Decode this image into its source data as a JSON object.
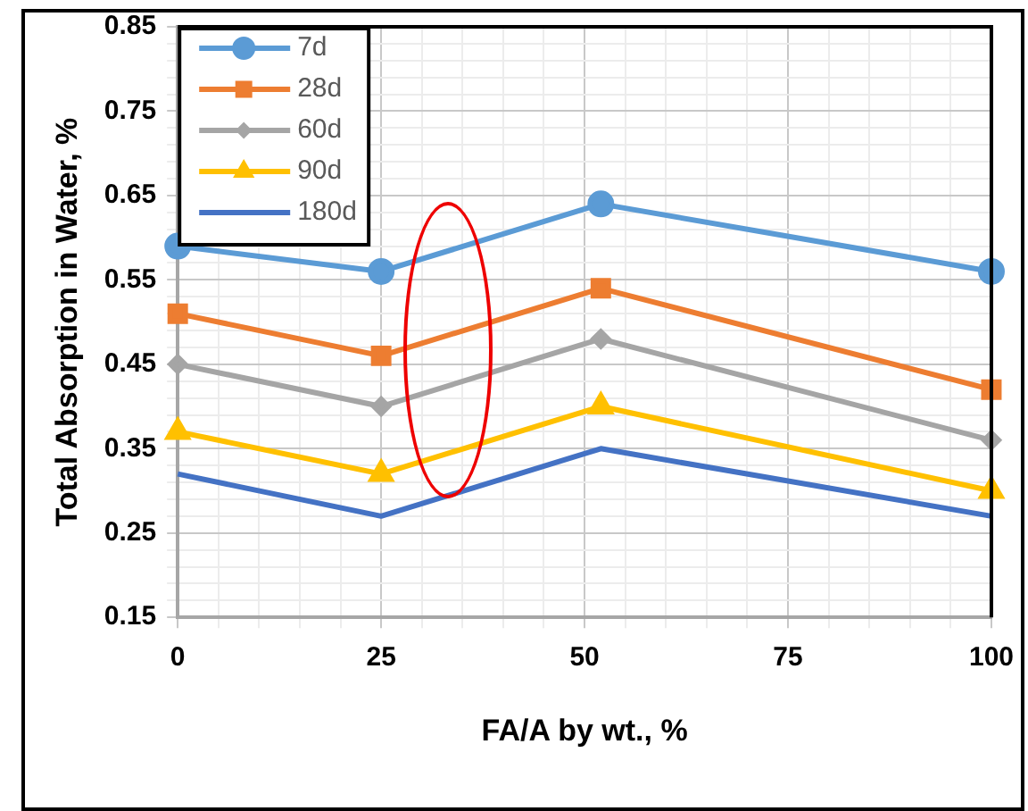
{
  "chart_data": {
    "type": "line",
    "xlabel": "FA/A by wt., %",
    "ylabel": "Total Absorption in Water, %",
    "x": [
      0,
      25,
      52,
      100
    ],
    "series": [
      {
        "name": "7d",
        "color": "#5b9bd5",
        "marker": "circle",
        "values": [
          0.59,
          0.56,
          0.64,
          0.56
        ]
      },
      {
        "name": "28d",
        "color": "#ed7d31",
        "marker": "square",
        "values": [
          0.51,
          0.46,
          0.54,
          0.42
        ]
      },
      {
        "name": "60d",
        "color": "#a5a5a5",
        "marker": "diamond",
        "values": [
          0.45,
          0.4,
          0.48,
          0.36
        ]
      },
      {
        "name": "90d",
        "color": "#ffc000",
        "marker": "triangle",
        "values": [
          0.37,
          0.32,
          0.4,
          0.3
        ]
      },
      {
        "name": "180d",
        "color": "#4472c4",
        "marker": "none",
        "values": [
          0.32,
          0.27,
          0.35,
          0.27
        ]
      }
    ],
    "xlim": [
      0,
      100
    ],
    "xticks": [
      0,
      25,
      50,
      75,
      100
    ],
    "ylim": [
      0.15,
      0.85
    ],
    "yticks": [
      0.15,
      0.25,
      0.35,
      0.45,
      0.55,
      0.65,
      0.75,
      0.85
    ],
    "grid": true,
    "legend": "top left",
    "line_style": "solid"
  }
}
